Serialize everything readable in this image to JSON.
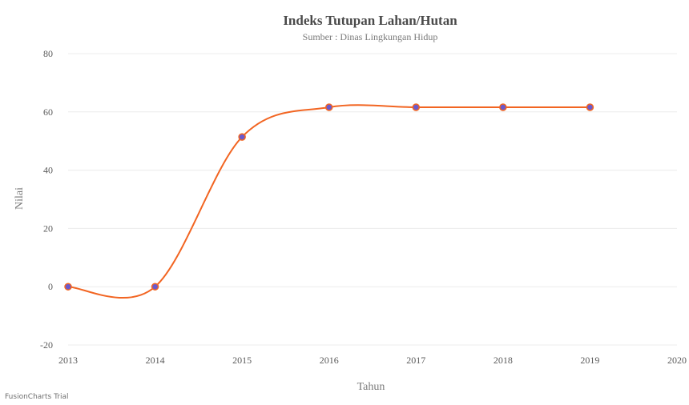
{
  "chart_data": {
    "type": "line",
    "title": "Indeks Tutupan Lahan/Hutan",
    "subtitle": "Sumber : Dinas Lingkungan Hidup",
    "xlabel": "Tahun",
    "ylabel": "Nilai",
    "x": [
      2013,
      2014,
      2015,
      2016,
      2017,
      2018,
      2019
    ],
    "x_ticks": [
      2013,
      2014,
      2015,
      2016,
      2017,
      2018,
      2019,
      2020
    ],
    "xlim": [
      2013,
      2020
    ],
    "y_ticks": [
      -20,
      0,
      20,
      40,
      60,
      80
    ],
    "ylim": [
      -20,
      80
    ],
    "series": [
      {
        "name": "",
        "values": [
          0,
          0,
          51.4,
          61.6,
          61.6,
          61.6,
          61.6
        ]
      }
    ],
    "line_color": "#f26522",
    "marker_color": "#6a5acd",
    "grid": true,
    "legend": "none"
  },
  "watermark": "FusionCharts Trial"
}
